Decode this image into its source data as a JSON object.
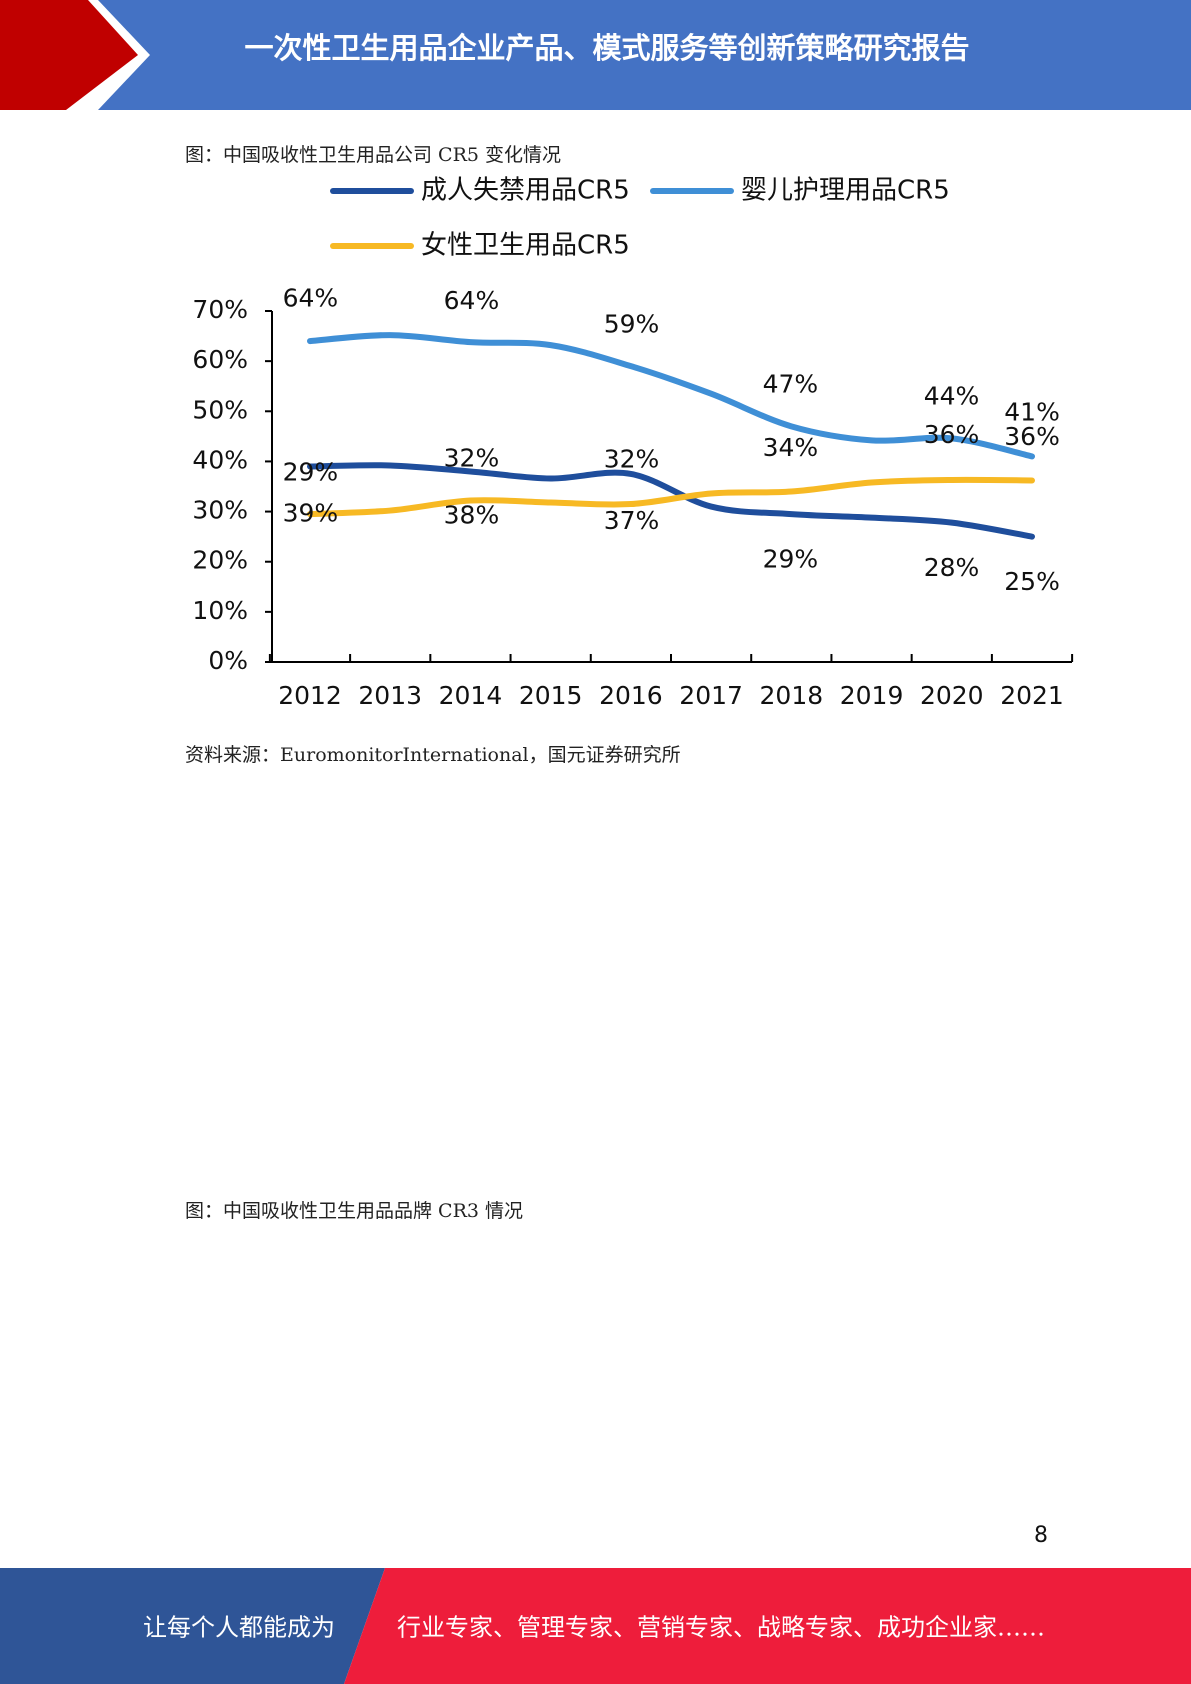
{
  "header": {
    "title": "一次性卫生用品企业产品、模式服务等创新策略研究报告"
  },
  "figure1_caption": "图：中国吸收性卫生用品公司 CR5 变化情况",
  "chart_data": {
    "type": "line",
    "categories": [
      "2012",
      "2013",
      "2014",
      "2015",
      "2016",
      "2017",
      "2018",
      "2019",
      "2020",
      "2021"
    ],
    "series": [
      {
        "name": "成人失禁用品CR5",
        "color": "#1f4e9c",
        "values": [
          39,
          39.2,
          38,
          36.6,
          37.5,
          31,
          29.5,
          28.8,
          27.8,
          25
        ]
      },
      {
        "name": "婴儿护理用品CR5",
        "color": "#3f8fd6",
        "values": [
          64,
          65.2,
          63.8,
          63.2,
          59,
          53.5,
          47,
          44.2,
          44.6,
          41
        ]
      },
      {
        "name": "女性卫生用品CR5",
        "color": "#f7b924",
        "values": [
          29.5,
          30.2,
          32.2,
          31.8,
          31.5,
          33.6,
          34,
          35.8,
          36.3,
          36.2
        ]
      }
    ],
    "ylim": [
      0,
      70
    ],
    "yticks": [
      {
        "value": 0,
        "label": "0%"
      },
      {
        "value": 10,
        "label": "10%"
      },
      {
        "value": 20,
        "label": "20%"
      },
      {
        "value": 30,
        "label": "30%"
      },
      {
        "value": 40,
        "label": "40%"
      },
      {
        "value": 50,
        "label": "50%"
      },
      {
        "value": 60,
        "label": "60%"
      },
      {
        "value": 70,
        "label": "70%"
      }
    ],
    "annotations": [
      {
        "value": 64,
        "label": "64%"
      },
      {
        "value": 64,
        "label": "64%"
      },
      {
        "value": 59,
        "label": "59%"
      },
      {
        "value": 47,
        "label": "47%"
      },
      {
        "value": 44,
        "label": "44%"
      },
      {
        "value": 41,
        "label": "41%"
      },
      {
        "value": 32,
        "label": "32%"
      },
      {
        "value": 32,
        "label": "32%"
      },
      {
        "value": 34,
        "label": "34%"
      },
      {
        "value": 36,
        "label": "36%"
      },
      {
        "value": 36,
        "label": "36%"
      },
      {
        "value": 29,
        "label": "29%"
      },
      {
        "value": 39,
        "label": "39%"
      },
      {
        "value": 38,
        "label": "38%"
      },
      {
        "value": 37,
        "label": "37%"
      },
      {
        "value": 29,
        "label": "29%"
      },
      {
        "value": 28,
        "label": "28%"
      },
      {
        "value": 25,
        "label": "25%"
      }
    ]
  },
  "figure1_source": "资料来源：EuromonitorInternational，国元证券研究所",
  "figure2_caption": "图：中国吸收性卫生用品品牌 CR3 情况",
  "page_number": "8",
  "footer": {
    "left": "让每个人都能成为",
    "right": "行业专家、管理专家、营销专家、战略专家、成功企业家……"
  }
}
